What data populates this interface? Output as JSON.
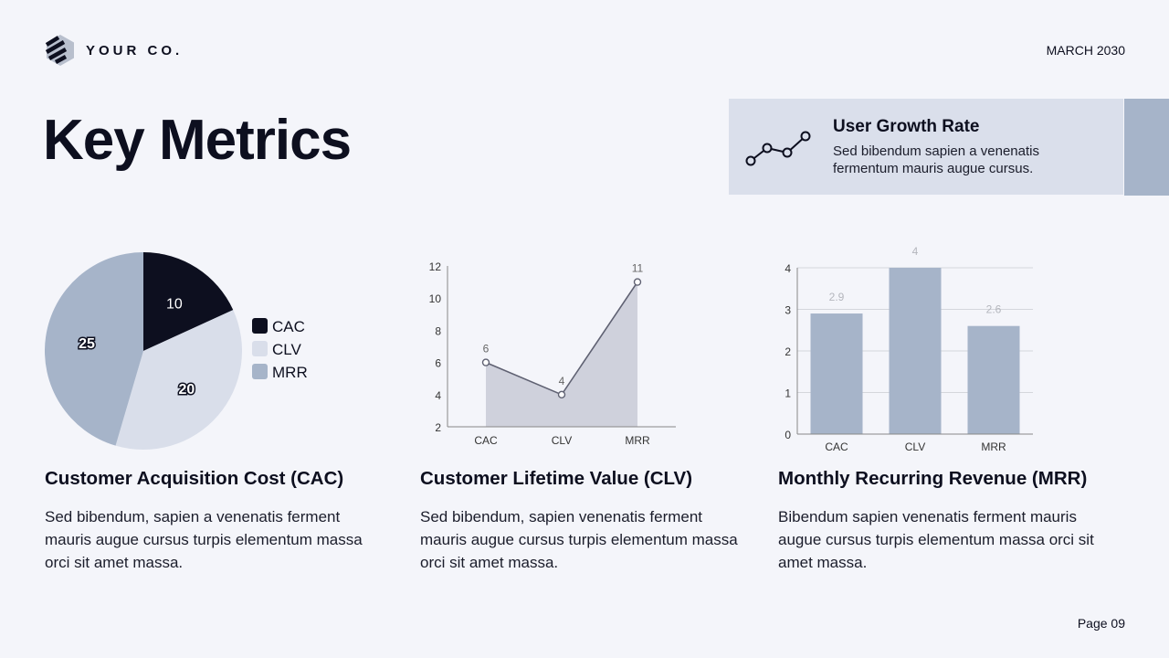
{
  "header": {
    "logo_text": "YOUR CO.",
    "date": "MARCH 2030",
    "title": "Key Metrics"
  },
  "growth_card": {
    "icon": "line-graph-icon",
    "title": "User Growth Rate",
    "description": "Sed bibendum sapien a venenatis fermentum mauris augue cursus."
  },
  "columns": [
    {
      "title": "Customer Acquisition Cost (CAC)",
      "description": "Sed bibendum, sapien a venenatis ferment mauris augue cursus turpis elementum massa orci sit amet massa."
    },
    {
      "title": "Customer Lifetime Value (CLV)",
      "description": "Sed bibendum, sapien venenatis ferment mauris augue cursus turpis elementum massa orci sit amet massa."
    },
    {
      "title": "Monthly Recurring Revenue (MRR)",
      "description": "Bibendum sapien venenatis ferment mauris augue cursus turpis elementum massa orci sit amet massa."
    }
  ],
  "footer": {
    "page": "Page 09"
  },
  "colors": {
    "background": "#f4f5fa",
    "dark": "#0d0f1f",
    "light": "#d9deea",
    "mid": "#a6b4c9",
    "area": "#cfd1dc",
    "line": "#5f6172"
  },
  "chart_data": [
    {
      "type": "pie",
      "title": "",
      "categories": [
        "CAC",
        "CLV",
        "MRR"
      ],
      "values": [
        10,
        20,
        25
      ],
      "colors": [
        "#0d0f1f",
        "#d9deea",
        "#a6b4c9"
      ],
      "legend_position": "right"
    },
    {
      "type": "area",
      "title": "",
      "categories": [
        "CAC",
        "CLV",
        "MRR"
      ],
      "values": [
        6,
        4,
        11
      ],
      "ylim": [
        2,
        12
      ],
      "yticks": [
        2,
        4,
        6,
        8,
        10,
        12
      ],
      "data_labels": true,
      "grid": false
    },
    {
      "type": "bar",
      "title": "",
      "categories": [
        "CAC",
        "CLV",
        "MRR"
      ],
      "values": [
        2.9,
        4,
        2.6
      ],
      "ylim": [
        0,
        4
      ],
      "yticks": [
        0,
        1,
        2,
        3,
        4
      ],
      "data_labels": true,
      "grid": true
    }
  ]
}
